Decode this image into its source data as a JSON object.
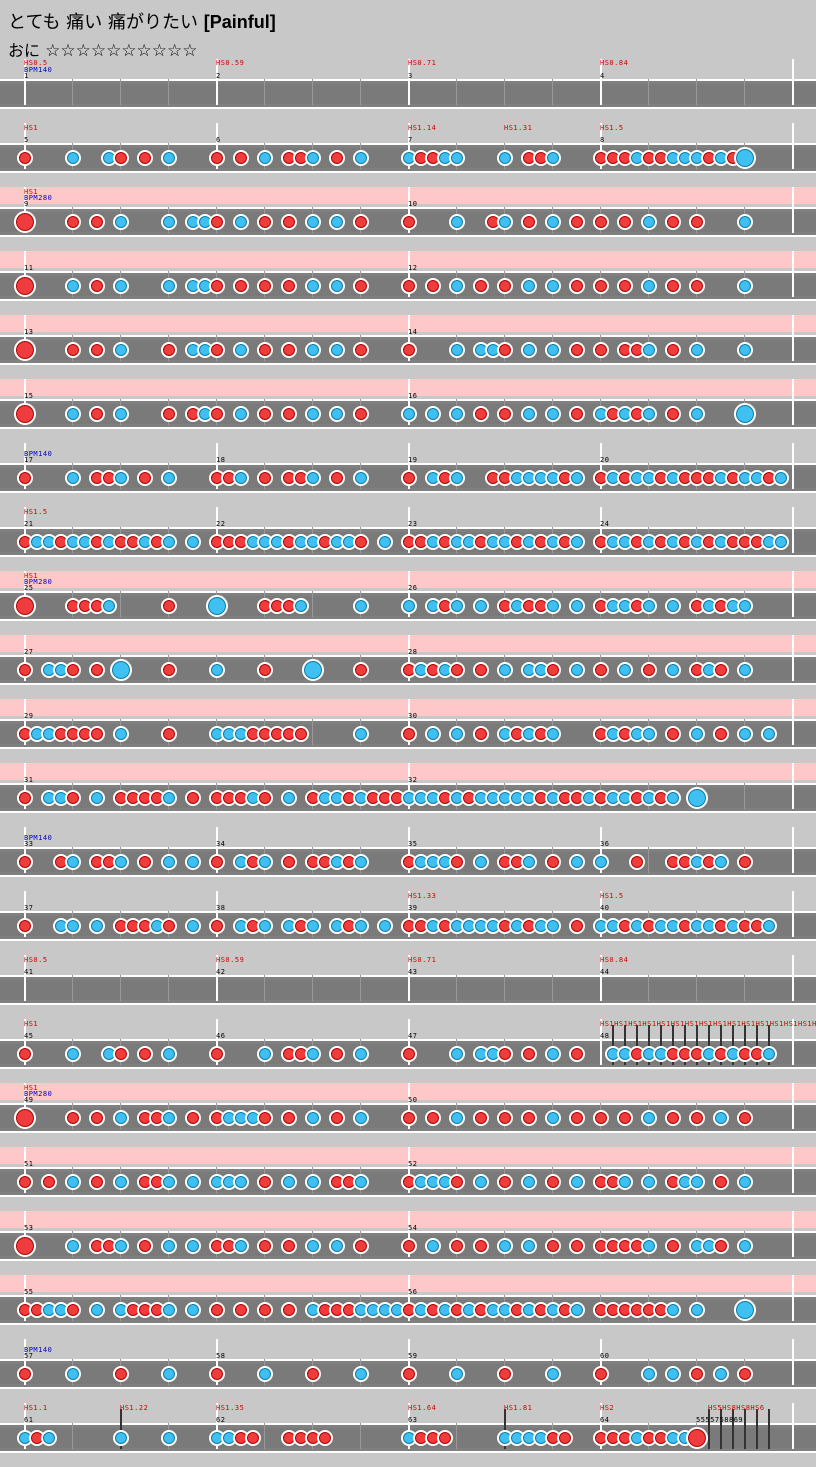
{
  "song": {
    "title_jp": "とても 痛い 痛がりたい",
    "title_en": "[Painful]",
    "course": "おに",
    "stars": "☆☆☆☆☆☆☆☆☆☆"
  },
  "rows": [
    {
      "pink": false,
      "labels": [
        [
          "HS0.5",
          "red",
          24,
          60
        ],
        [
          "BPM140",
          "blue",
          24,
          67
        ],
        [
          "1",
          "blk",
          24,
          73
        ],
        [
          "HS0.59",
          "red",
          216,
          60
        ],
        [
          "2",
          "blk",
          216,
          73
        ],
        [
          "HS0.71",
          "red",
          408,
          60
        ],
        [
          "3",
          "blk",
          408,
          73
        ],
        [
          "HS0.84",
          "red",
          600,
          60
        ],
        [
          "4",
          "blk",
          600,
          73
        ]
      ],
      "bars": [
        24,
        216,
        408,
        600,
        792
      ],
      "notes": []
    },
    {
      "pink": false,
      "labels": [
        [
          "HS1",
          "red",
          24,
          125
        ],
        [
          "5",
          "blk",
          24,
          137
        ],
        [
          "6",
          "blk",
          216,
          137
        ],
        [
          "HS1.14",
          "red",
          408,
          125
        ],
        [
          "7",
          "blk",
          408,
          137
        ],
        [
          "HS1.31",
          "red",
          504,
          125
        ],
        [
          "HS1.5",
          "red",
          600,
          125
        ],
        [
          "8",
          "blk",
          600,
          137
        ]
      ],
      "bars": [
        24,
        216,
        408,
        600,
        792
      ],
      "notes": "d24 k72 k108 d120 d144 k168 d216 d240 k264 d288 d300 k312 d336 k360 k408 d420 d432 k444 k456 k504 d528 d540 k552 d600 d612 d624 k636 d648 d660 k672 k684 k696 d708 k720 d732 K744"
    },
    {
      "pink": true,
      "labels": [
        [
          "HS1",
          "red",
          24,
          189
        ],
        [
          "BPM280",
          "blue",
          24,
          195
        ],
        [
          "9",
          "blk",
          24,
          201
        ],
        [
          "10",
          "blk",
          408,
          201
        ]
      ],
      "bars": [
        24,
        408,
        792
      ],
      "notes": "D24 d72 d96 k120 k168 k192 k204 d216 k240 d264 d288 k312 k336 d360 d408 k456 d492 k504 d528 k552 d576 d600 d624 k648 d672 d696 k744"
    },
    {
      "pink": true,
      "labels": [
        [
          "11",
          "blk",
          24,
          265
        ],
        [
          "12",
          "blk",
          408,
          265
        ]
      ],
      "bars": [
        24,
        408,
        792
      ],
      "notes": "D24 k72 d96 k120 k168 k192 k204 d216 d240 d264 d288 k312 k336 d360 d408 d432 k456 d480 d504 k528 k552 d576 d600 d624 k648 d672 d696 k744"
    },
    {
      "pink": true,
      "labels": [
        [
          "13",
          "blk",
          24,
          329
        ],
        [
          "14",
          "blk",
          408,
          329
        ]
      ],
      "bars": [
        24,
        408,
        792
      ],
      "notes": "D24 d72 d96 k120 d168 k192 k204 d216 k240 d264 d288 k312 k336 d360 d408 k456 k480 k492 d504 k528 k552 d576 d600 d624 d636 k648 d672 k696 k744"
    },
    {
      "pink": true,
      "labels": [
        [
          "15",
          "blk",
          24,
          393
        ],
        [
          "16",
          "blk",
          408,
          393
        ]
      ],
      "bars": [
        24,
        408,
        792
      ],
      "notes": "D24 k72 d96 k120 d168 d192 k204 d216 k240 d264 d288 k312 k336 d360 k408 k432 k456 d480 d504 k528 k552 d576 k600 d612 k624 d636 k648 d672 k696 K744"
    },
    {
      "pink": false,
      "labels": [
        [
          "BPM140",
          "blue",
          24,
          451
        ],
        [
          "17",
          "blk",
          24,
          457
        ],
        [
          "18",
          "blk",
          216,
          457
        ],
        [
          "19",
          "blk",
          408,
          457
        ],
        [
          "20",
          "blk",
          600,
          457
        ]
      ],
      "bars": [
        24,
        216,
        408,
        600,
        792
      ],
      "notes": "d24 k72 d96 d108 k120 d144 k168 d216 d228 k240 d264 d288 d300 k312 d336 k360 d408 k432 d444 k456 d492 d504 k516 k528 k540 k552 d564 k576 d600 k612 d624 k636 k648 d660 k672 d684 d696 d708 k720 d732 k744 k756 d768 k780"
    },
    {
      "pink": false,
      "labels": [
        [
          "HS1.5",
          "red",
          24,
          509
        ],
        [
          "21",
          "blk",
          24,
          521
        ],
        [
          "22",
          "blk",
          216,
          521
        ],
        [
          "23",
          "blk",
          408,
          521
        ],
        [
          "24",
          "blk",
          600,
          521
        ]
      ],
      "bars": [
        24,
        216,
        408,
        600,
        792
      ],
      "notes": "d24 k36 k48 d60 k72 k84 d96 k108 d120 d132 k144 d156 k168 k192 d216 d228 d240 k252 k264 k276 d288 k300 k312 d324 k336 k348 d360 k384 d408 d420 k432 d444 k456 k468 d480 k492 k504 d516 k528 d540 k552 d564 k576 d600 k612 k624 d636 k648 d660 k672 d684 k696 d708 k720 d732 d744 d756 k768 k780"
    },
    {
      "pink": true,
      "labels": [
        [
          "HS1",
          "red",
          24,
          573
        ],
        [
          "BPM280",
          "blue",
          24,
          579
        ],
        [
          "25",
          "blk",
          24,
          585
        ],
        [
          "26",
          "blk",
          408,
          585
        ]
      ],
      "bars": [
        24,
        408,
        792
      ],
      "notes": "D24 d72 d84 d96 k108 d168 K216 d264 d276 d288 k300 k360 k408 k432 d444 k456 k480 d504 k516 d528 d540 k552 k576 d600 k612 k624 d636 k648 k672 d696 k708 d720 k732 k744"
    },
    {
      "pink": true,
      "labels": [
        [
          "27",
          "blk",
          24,
          649
        ],
        [
          "28",
          "blk",
          408,
          649
        ]
      ],
      "bars": [
        24,
        408,
        792
      ],
      "notes": "d24 k48 k60 d72 d96 K120 d168 k216 d264 K312 d360 d408 k420 d432 k444 d456 d480 k504 k528 k540 d552 k576 d600 k624 d648 k672 d696 k708 d720 k744"
    },
    {
      "pink": true,
      "labels": [
        [
          "29",
          "blk",
          24,
          713
        ],
        [
          "30",
          "blk",
          408,
          713
        ]
      ],
      "bars": [
        24,
        408,
        792
      ],
      "notes": "d24 k36 k48 d60 d72 d84 d96 k120 d168 k216 k228 k240 d252 d264 d276 d288 d300 k360 d408 k432 k456 d480 k504 d516 k528 d540 k552 d600 k612 d624 k636 k648 d672 k696 d720 k744 k768"
    },
    {
      "pink": true,
      "labels": [
        [
          "31",
          "blk",
          24,
          777
        ],
        [
          "32",
          "blk",
          408,
          777
        ]
      ],
      "bars": [
        24,
        408,
        792
      ],
      "notes": "d24 k48 k60 d72 k96 d120 d132 d144 d156 k168 d192 d216 d228 d240 k252 d264 k288 d312 k324 k336 d348 k360 d372 d384 d396 k408 k420 k432 d444 k456 d468 k480 k492 k504 k516 k528 d540 k552 d564 d576 k588 d600 k612 k624 d636 k648 d660 k672 K696"
    },
    {
      "pink": false,
      "labels": [
        [
          "BPM140",
          "blue",
          24,
          835
        ],
        [
          "33",
          "blk",
          24,
          841
        ],
        [
          "34",
          "blk",
          216,
          841
        ],
        [
          "35",
          "blk",
          408,
          841
        ],
        [
          "36",
          "blk",
          600,
          841
        ]
      ],
      "bars": [
        24,
        216,
        408,
        600,
        792
      ],
      "notes": "d24 d60 k72 d96 d108 k120 d144 k168 k192 d216 k240 d252 k264 d288 d312 d324 k336 d348 k360 d408 k420 k432 k444 d456 k480 d504 d516 k528 d552 k576 k600 d636 d672 d684 k696 d708 k720 d744"
    },
    {
      "pink": false,
      "labels": [
        [
          "37",
          "blk",
          24,
          905
        ],
        [
          "38",
          "blk",
          216,
          905
        ],
        [
          "HS1.33",
          "red",
          408,
          893
        ],
        [
          "39",
          "blk",
          408,
          905
        ],
        [
          "HS1.5",
          "red",
          600,
          893
        ],
        [
          "40",
          "blk",
          600,
          905
        ]
      ],
      "bars": [
        24,
        216,
        408,
        600,
        792
      ],
      "notes": "d24 k60 k72 k96 d120 d132 d144 k156 d168 k192 d216 k240 d252 k264 k288 d300 k312 k336 d348 k360 k384 d408 d420 k432 d444 k456 k468 k480 k492 d504 k516 d528 k540 k552 d576 k600 k612 d624 k636 d648 k660 k672 d684 k696 k708 d720 k732 d744 d756 k768"
    },
    {
      "pink": false,
      "labels": [
        [
          "HS0.5",
          "red",
          24,
          957
        ],
        [
          "41",
          "blk",
          24,
          969
        ],
        [
          "HS0.59",
          "red",
          216,
          957
        ],
        [
          "42",
          "blk",
          216,
          969
        ],
        [
          "HS0.71",
          "red",
          408,
          957
        ],
        [
          "43",
          "blk",
          408,
          969
        ],
        [
          "HS0.84",
          "red",
          600,
          957
        ],
        [
          "44",
          "blk",
          600,
          969
        ]
      ],
      "bars": [
        24,
        216,
        408,
        600,
        792
      ],
      "notes": []
    },
    {
      "pink": false,
      "labels": [
        [
          "HS1",
          "red",
          24,
          1021
        ],
        [
          "45",
          "blk",
          24,
          1033
        ],
        [
          "46",
          "blk",
          216,
          1033
        ],
        [
          "47",
          "blk",
          408,
          1033
        ],
        [
          "HS1HS1HS1HS1HS1HS1HS1HS1HS1HS1HS1HS1HS1HS1HS1HS1HS1",
          "red",
          600,
          1021
        ],
        [
          "48",
          "blk",
          600,
          1033
        ]
      ],
      "bars": [
        24,
        216,
        408,
        600,
        792
      ],
      "notes": "d24 k72 k108 d120 d144 k168 d216 k264 d288 d300 k312 d336 k360 d408 k456 k480 k492 d504 d528 k552 d576 k612 k624 d636 k648 k660 d672 d684 d696 k708 d720 k732 d744 d756 k768",
      "hslines": [
        612,
        624,
        636,
        648,
        660,
        672,
        684,
        696,
        708,
        720,
        732,
        744,
        756,
        768
      ]
    },
    {
      "pink": true,
      "labels": [
        [
          "HS1",
          "red",
          24,
          1085
        ],
        [
          "BPM280",
          "blue",
          24,
          1091
        ],
        [
          "49",
          "blk",
          24,
          1097
        ],
        [
          "50",
          "blk",
          408,
          1097
        ]
      ],
      "bars": [
        24,
        408,
        792
      ],
      "notes": "D24 d72 d96 k120 d144 d156 k168 d192 d216 k228 k240 k252 d264 d288 k312 d336 k360 d408 d432 k456 d480 d504 d528 k552 d576 d600 d624 k648 d672 d696 k720 d744"
    },
    {
      "pink": true,
      "labels": [
        [
          "51",
          "blk",
          24,
          1161
        ],
        [
          "52",
          "blk",
          408,
          1161
        ]
      ],
      "bars": [
        24,
        408,
        792
      ],
      "notes": "d24 d48 k72 d96 k120 d144 d156 k168 k192 k216 k228 k240 d264 k288 k312 d336 d348 k360 d408 k420 k432 k444 d456 k480 d504 k528 d552 k576 d600 d612 k624 k648 d672 k684 k696 d720 k744"
    },
    {
      "pink": true,
      "labels": [
        [
          "53",
          "blk",
          24,
          1225
        ],
        [
          "54",
          "blk",
          408,
          1225
        ]
      ],
      "bars": [
        24,
        408,
        792
      ],
      "notes": "D24 k72 d96 d108 k120 d144 k168 k192 d216 d228 k240 d264 d288 k312 k336 d360 d408 k432 d456 d480 k504 k528 d552 d576 d600 d612 d624 d636 k648 d672 k696 k708 d720 k744"
    },
    {
      "pink": true,
      "labels": [
        [
          "55",
          "blk",
          24,
          1289
        ],
        [
          "56",
          "blk",
          408,
          1289
        ]
      ],
      "bars": [
        24,
        408,
        792
      ],
      "notes": "d24 d36 k48 k60 d72 k96 k120 d132 d144 d156 k168 k192 d216 d240 d264 d288 k312 d324 d336 d348 k360 k372 k384 k396 d408 k420 d432 k444 d456 k468 d480 k492 k504 d516 k528 d540 k552 d564 k576 d600 d612 d624 d636 d648 d660 k672 k696 K744"
    },
    {
      "pink": false,
      "labels": [
        [
          "BPM140",
          "blue",
          24,
          1347
        ],
        [
          "57",
          "blk",
          24,
          1353
        ],
        [
          "58",
          "blk",
          216,
          1353
        ],
        [
          "59",
          "blk",
          408,
          1353
        ],
        [
          "60",
          "blk",
          600,
          1353
        ]
      ],
      "bars": [
        24,
        216,
        408,
        600,
        792
      ],
      "notes": "d24 k72 d120 k168 d216 k264 d312 k360 d408 k456 d504 k552 d600 k648 k672 d696 k720 d744"
    },
    {
      "pink": false,
      "labels": [
        [
          "HS1.1",
          "red",
          24,
          1405
        ],
        [
          "61",
          "blk",
          24,
          1417
        ],
        [
          "HS1.22",
          "red",
          120,
          1405
        ],
        [
          "HS1.35",
          "red",
          216,
          1405
        ],
        [
          "62",
          "blk",
          216,
          1417
        ],
        [
          "HS1.64",
          "red",
          408,
          1405
        ],
        [
          "63",
          "blk",
          408,
          1417
        ],
        [
          "HS1.81",
          "red",
          504,
          1405
        ],
        [
          "HS2",
          "red",
          600,
          1405
        ],
        [
          "64",
          "blk",
          600,
          1417
        ],
        [
          "HS5HS8HS8HS6",
          "red",
          708,
          1405
        ],
        [
          "5555758869",
          "blk",
          696,
          1417
        ]
      ],
      "bars": [
        24,
        216,
        408,
        600,
        792
      ],
      "notes": "k24 d36 k48 k120 k168 k216 k228 d240 d252 d288 d300 d312 d324 k408 d420 d432 d444 k504 k516 k528 k540 d552 d564 d600 d612 d624 k636 d648 d660 k672 k684 D696",
      "hslines": [
        120,
        504,
        708,
        720,
        732,
        744,
        756,
        768
      ]
    }
  ]
}
